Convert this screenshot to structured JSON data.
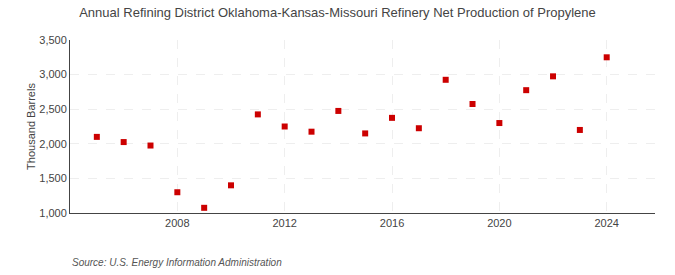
{
  "chart_data": {
    "type": "scatter",
    "title": "Annual Refining District Oklahoma-Kansas-Missouri Refinery Net Production of Propylene",
    "ylabel": "Thousand Barrels",
    "annotations": [
      "Source: U.S. Energy Information Administration"
    ],
    "x": [
      2005,
      2006,
      2007,
      2008,
      2009,
      2010,
      2011,
      2012,
      2013,
      2014,
      2015,
      2016,
      2017,
      2018,
      2019,
      2020,
      2021,
      2022,
      2023,
      2024
    ],
    "values": [
      2100,
      2025,
      1975,
      1300,
      1075,
      1400,
      2425,
      2250,
      2175,
      2475,
      2150,
      2375,
      2225,
      2925,
      2575,
      2300,
      2775,
      2975,
      2200,
      3250
    ],
    "color": "#cc0000",
    "marker": "square",
    "ylim": [
      1000,
      3500
    ],
    "yticks": [
      {
        "value": 1000,
        "label": "1,000"
      },
      {
        "value": 1500,
        "label": "1,500"
      },
      {
        "value": 2000,
        "label": "2,000"
      },
      {
        "value": 2500,
        "label": "2,500"
      },
      {
        "value": 3000,
        "label": "3,000"
      },
      {
        "value": 3500,
        "label": "3,500"
      }
    ],
    "xlim": [
      2004.0,
      2025.8
    ],
    "xticks": [
      2008,
      2012,
      2016,
      2020,
      2024
    ],
    "grid": true
  }
}
